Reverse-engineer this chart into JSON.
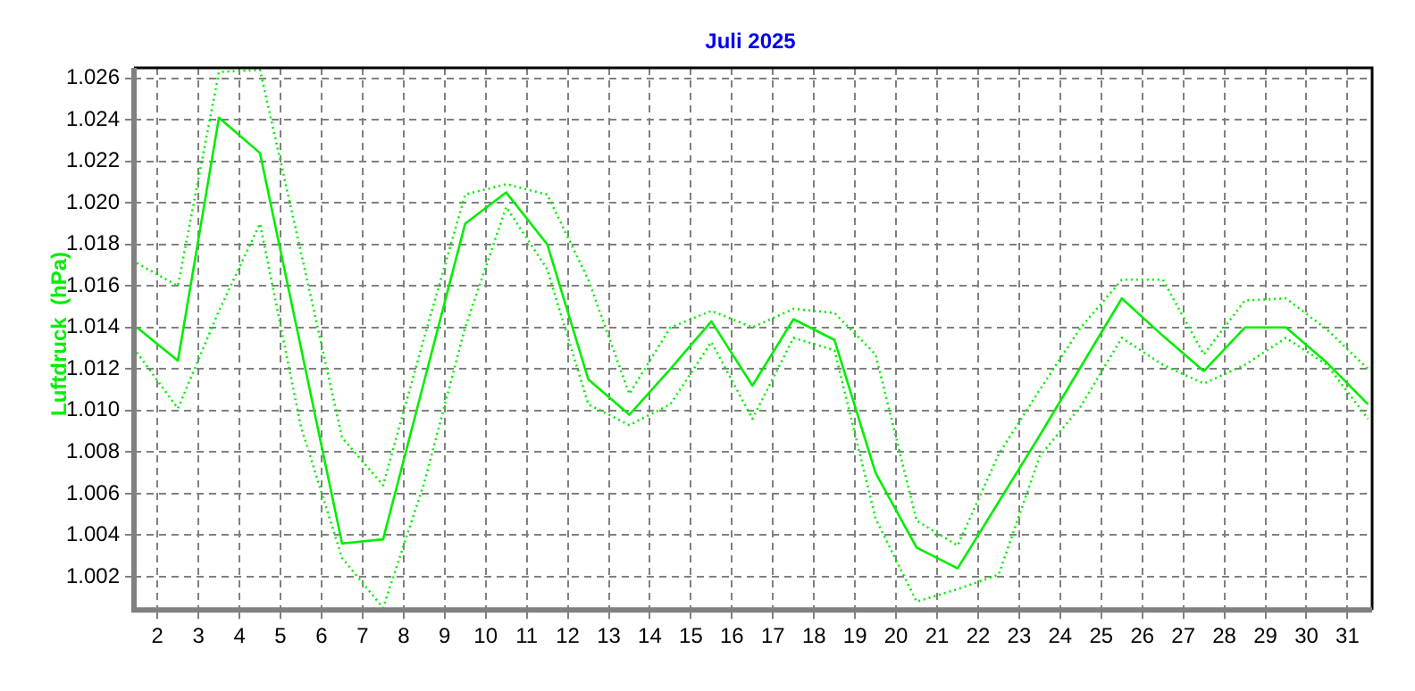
{
  "chart_data": {
    "type": "line",
    "title": "Juli 2025",
    "ylabel": "Luftdruck  (hPa)",
    "x": [
      1.5,
      2.5,
      3.5,
      4.5,
      5.5,
      6.5,
      7.5,
      8.5,
      9.5,
      10.5,
      11.5,
      12.5,
      13.5,
      14.5,
      15.5,
      16.5,
      17.5,
      18.5,
      19.5,
      20.5,
      21.5,
      22.5,
      23.5,
      24.5,
      25.5,
      26.5,
      27.5,
      28.5,
      29.5,
      30.5,
      31.5
    ],
    "series": [
      {
        "color": "#00ee00",
        "line_style": "dotted",
        "values": [
          1.0171,
          1.016,
          1.0263,
          1.0264,
          1.0176,
          1.0087,
          1.0064,
          1.0135,
          1.0204,
          1.0209,
          1.0204,
          1.0163,
          1.0108,
          1.014,
          1.0148,
          1.014,
          1.0149,
          1.0147,
          1.0127,
          1.0047,
          1.0035,
          1.0079,
          1.011,
          1.014,
          1.0163,
          1.0163,
          1.0127,
          1.0153,
          1.0154,
          1.0139,
          1.012
        ]
      },
      {
        "color": "#00ee00",
        "line_style": "solid",
        "values": [
          1.014,
          1.0124,
          1.0241,
          1.0224,
          1.013,
          1.0036,
          1.0038,
          1.0114,
          1.019,
          1.0205,
          1.018,
          1.0115,
          1.0098,
          1.012,
          1.0143,
          1.0112,
          1.0144,
          1.0134,
          1.007,
          1.0034,
          1.0024,
          1.0056,
          1.0088,
          1.0121,
          1.0154,
          1.0136,
          1.0119,
          1.014,
          1.014,
          1.0123,
          1.0103
        ]
      },
      {
        "color": "#00ee00",
        "line_style": "dotted",
        "values": [
          1.0128,
          1.0101,
          1.0148,
          1.019,
          1.0092,
          1.0029,
          1.0005,
          1.0065,
          1.014,
          1.0198,
          1.0168,
          1.0103,
          1.0093,
          1.0103,
          1.0133,
          1.0096,
          1.0135,
          1.0129,
          1.0048,
          1.0008,
          1.0014,
          1.0021,
          1.0078,
          1.0102,
          1.0135,
          1.0122,
          1.0113,
          1.0122,
          1.0135,
          1.0122,
          1.0096
        ]
      }
    ],
    "xlim": [
      1.43,
      31.6
    ],
    "xticks": [
      2,
      3,
      4,
      5,
      6,
      7,
      8,
      9,
      10,
      11,
      12,
      13,
      14,
      15,
      16,
      17,
      18,
      19,
      20,
      21,
      22,
      23,
      24,
      25,
      26,
      27,
      28,
      29,
      30,
      31
    ],
    "ylim": [
      1.0004,
      1.0265
    ],
    "yticks": [
      1.002,
      1.004,
      1.006,
      1.008,
      {
        "value": 1.01,
        "label": "1.010"
      },
      1.012,
      1.014,
      1.016,
      1.018,
      {
        "value": 1.02,
        "label": "1.020"
      },
      1.022,
      1.024,
      1.026
    ],
    "grid": true,
    "legend": false,
    "marker": "none"
  }
}
